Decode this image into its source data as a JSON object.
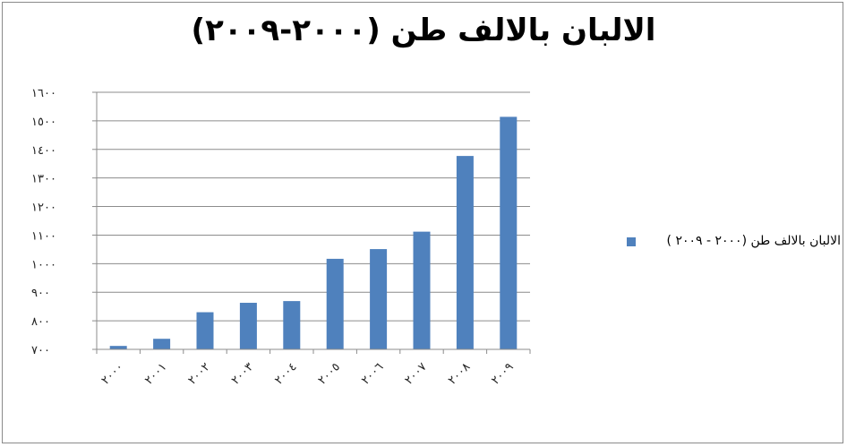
{
  "chart_data": {
    "type": "bar",
    "title": "الالبان بالالف طن (٢٠٠٠-٢٠٠٩)",
    "categories": [
      "٢٠٠٠",
      "٢٠٠١",
      "٢٠٠٢",
      "٢٠٠٣",
      "٢٠٠٤",
      "٢٠٠٥",
      "٢٠٠٦",
      "٢٠٠٧",
      "٢٠٠٨",
      "٢٠٠٩"
    ],
    "series": [
      {
        "name": "الالبان بالالف طن (٢٠٠٠ - ٢٠٠٩ )",
        "color": "#4f81bd",
        "values": [
          712,
          737,
          830,
          863,
          869,
          1017,
          1051,
          1112,
          1377,
          1514
        ]
      }
    ],
    "ylim": [
      700,
      1600
    ],
    "yticks": [
      700,
      800,
      900,
      1000,
      1100,
      1200,
      1300,
      1400,
      1500,
      1600
    ],
    "ytick_labels": [
      "٧٠٠",
      "٨٠٠",
      "٩٠٠",
      "١٠٠٠",
      "١١٠٠",
      "١٢٠٠",
      "١٣٠٠",
      "١٤٠٠",
      "١٥٠٠",
      "١٦٠٠"
    ],
    "grid": true,
    "legend_position": "right",
    "xlabel": "",
    "ylabel": ""
  }
}
